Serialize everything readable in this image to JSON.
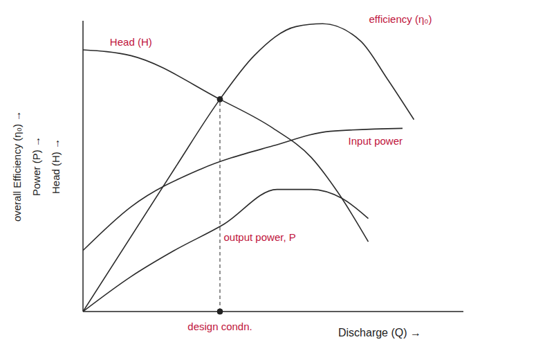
{
  "chart_data": {
    "type": "line",
    "x_label": "Discharge (Q) →",
    "y_labels": [
      "overall Efficiency (η₀) →",
      "Power (P) →",
      "Head (H) →"
    ],
    "xlim": [
      0,
      10
    ],
    "ylim": [
      0,
      10
    ],
    "xticks": [],
    "yticks": [],
    "tick_labels": false,
    "grid": false,
    "series": [
      {
        "name": "Head (H)",
        "color": "#2b2b2b",
        "x": [
          0,
          1.26,
          3.6,
          5.0,
          6.0,
          6.7,
          7.5
        ],
        "values": [
          9.0,
          8.8,
          7.3,
          6.3,
          5.3,
          4.1,
          2.4
        ]
      },
      {
        "name": "efficiency (η₀)",
        "color": "#2b2b2b",
        "x": [
          0,
          2.4,
          3.6,
          4.5,
          5.6,
          6.3,
          7.3,
          8.0,
          8.7
        ],
        "values": [
          0,
          4.9,
          7.3,
          8.8,
          9.8,
          9.9,
          9.3,
          8.0,
          6.6
        ]
      },
      {
        "name": "Input power",
        "color": "#2b2b2b",
        "x": [
          0,
          1.26,
          3.1,
          5.0,
          6.5,
          8.4
        ],
        "values": [
          2.1,
          3.6,
          4.9,
          5.7,
          6.2,
          6.3
        ]
      },
      {
        "name": "output power, P",
        "color": "#2b2b2b",
        "x": [
          0,
          1.26,
          2.4,
          3.7,
          5.1,
          6.0,
          6.8,
          7.5
        ],
        "values": [
          0,
          1.2,
          2.1,
          3.0,
          4.2,
          4.2,
          3.9,
          3.2
        ]
      }
    ],
    "design": {
      "text": "design condn.",
      "x": 3.6,
      "y": 7.3
    }
  }
}
